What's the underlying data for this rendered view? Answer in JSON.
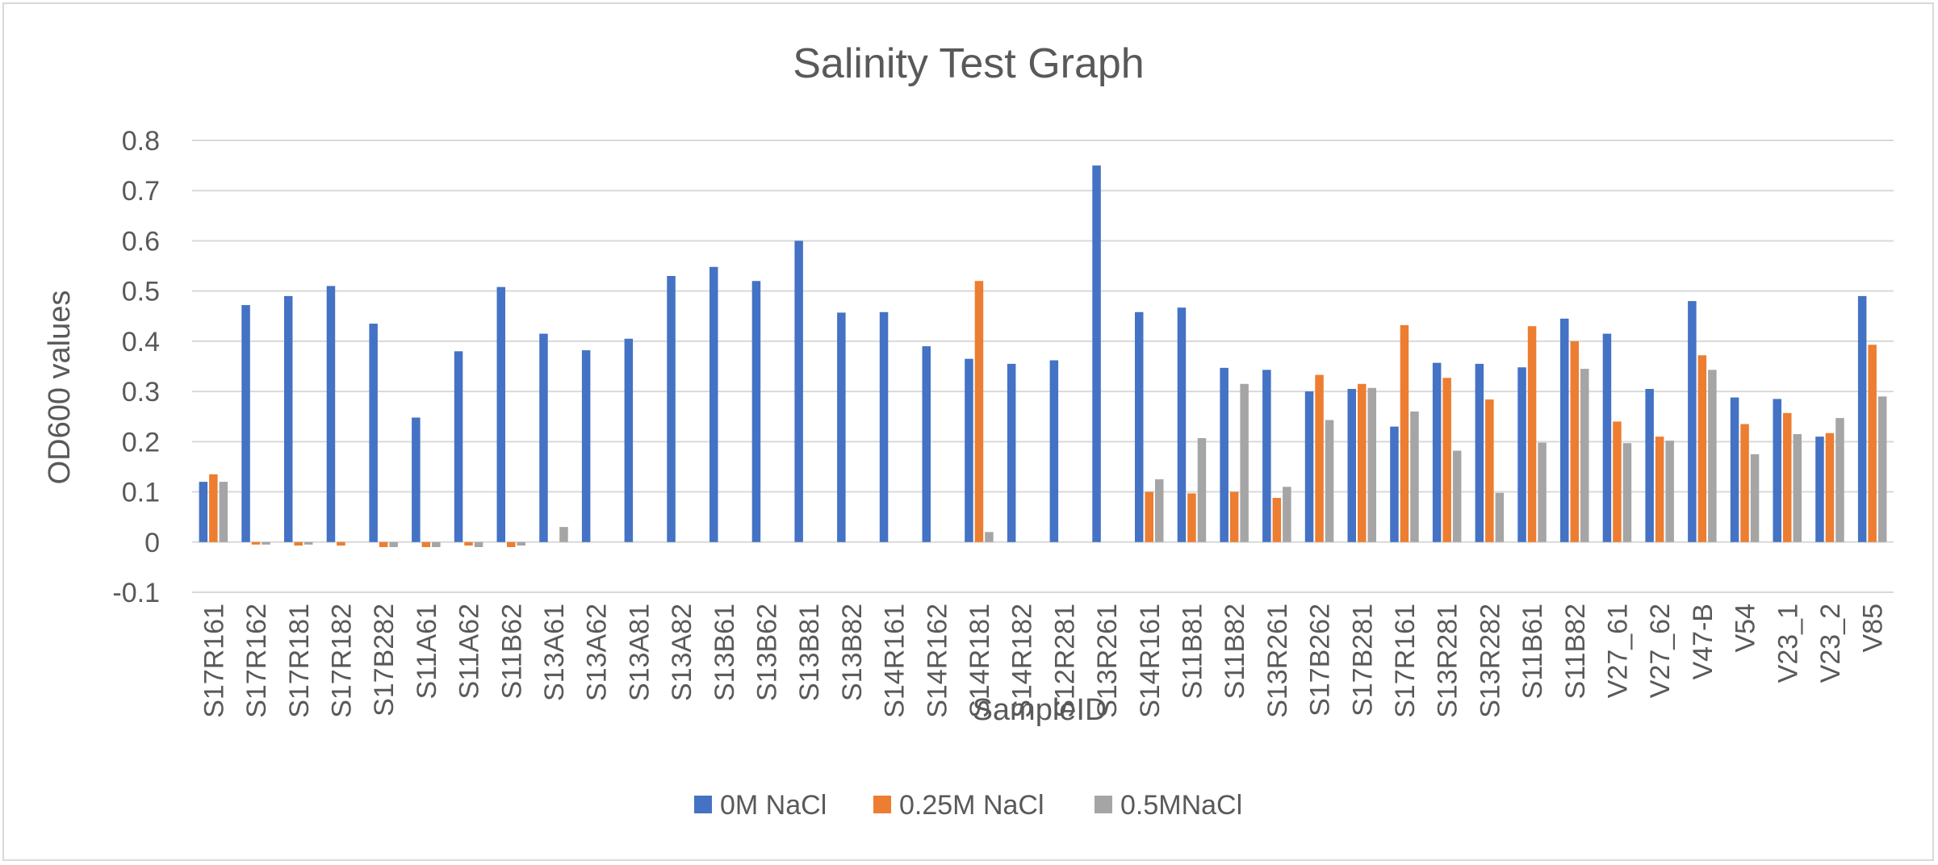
{
  "chart_data": {
    "type": "bar",
    "title": "Salinity Test Graph",
    "xlabel": "SampleID",
    "ylabel": "OD600 values",
    "ylim": [
      -0.1,
      0.8
    ],
    "yticks": [
      "0.8",
      "0.7",
      "0.6",
      "0.5",
      "0.4",
      "0.3",
      "0.2",
      "0.1",
      "0",
      "-0.1"
    ],
    "grid": true,
    "legend_position": "bottom",
    "categories": [
      "S17R161",
      "S17R162",
      "S17R181",
      "S17R182",
      "S17B282",
      "S11A61",
      "S11A62",
      "S11B62",
      "S13A61",
      "S13A62",
      "S13A81",
      "S13A82",
      "S13B61",
      "S13B62",
      "S13B81",
      "S13B82",
      "S14R161",
      "S14R162",
      "S14R181",
      "S14R182",
      "S12R281",
      "S13R261",
      "S14R161",
      "S11B81",
      "S11B82",
      "S13R261",
      "S17B262",
      "S17B281",
      "S17R161",
      "S13R281",
      "S13R282",
      "S11B61",
      "S11B82",
      "V27_61",
      "V27_62",
      "V47-B",
      "V54",
      "V23_1",
      "V23_2",
      "V85"
    ],
    "series": [
      {
        "name": "0M NaCl",
        "color": "#4472C4",
        "values": [
          0.12,
          0.472,
          0.49,
          0.51,
          0.435,
          0.248,
          0.38,
          0.508,
          0.415,
          0.382,
          0.405,
          0.53,
          0.548,
          0.52,
          0.6,
          0.457,
          0.458,
          0.39,
          0.365,
          0.355,
          0.362,
          0.75,
          0.458,
          0.467,
          0.347,
          0.343,
          0.3,
          0.305,
          0.23,
          0.357,
          0.355,
          0.348,
          0.445,
          0.415,
          0.305,
          0.48,
          0.288,
          0.285,
          0.21,
          0.49
        ]
      },
      {
        "name": "0.25M NaCl",
        "color": "#ED7D31",
        "values": [
          0.135,
          -0.005,
          -0.007,
          -0.007,
          -0.01,
          -0.01,
          -0.007,
          -0.01,
          0,
          0,
          0,
          0,
          0,
          0,
          0,
          0,
          0,
          0,
          0.52,
          0,
          0,
          0,
          0.1,
          0.097,
          0.1,
          0.088,
          0.333,
          0.315,
          0.432,
          0.327,
          0.284,
          0.43,
          0.4,
          0.24,
          0.21,
          0.372,
          0.235,
          0.257,
          0.217,
          0.393
        ]
      },
      {
        "name": "0.5MNaCl",
        "color": "#A5A5A5",
        "values": [
          0.12,
          -0.005,
          -0.005,
          0,
          -0.01,
          -0.01,
          -0.01,
          -0.007,
          0.03,
          0,
          0,
          0,
          0,
          0,
          0,
          0,
          0,
          0,
          0.02,
          0,
          0,
          0,
          0.125,
          0.207,
          0.315,
          0.11,
          0.243,
          0.307,
          0.26,
          0.182,
          0.098,
          0.198,
          0.345,
          0.197,
          0.202,
          0.343,
          0.175,
          0.215,
          0.247,
          0.29
        ]
      }
    ]
  }
}
